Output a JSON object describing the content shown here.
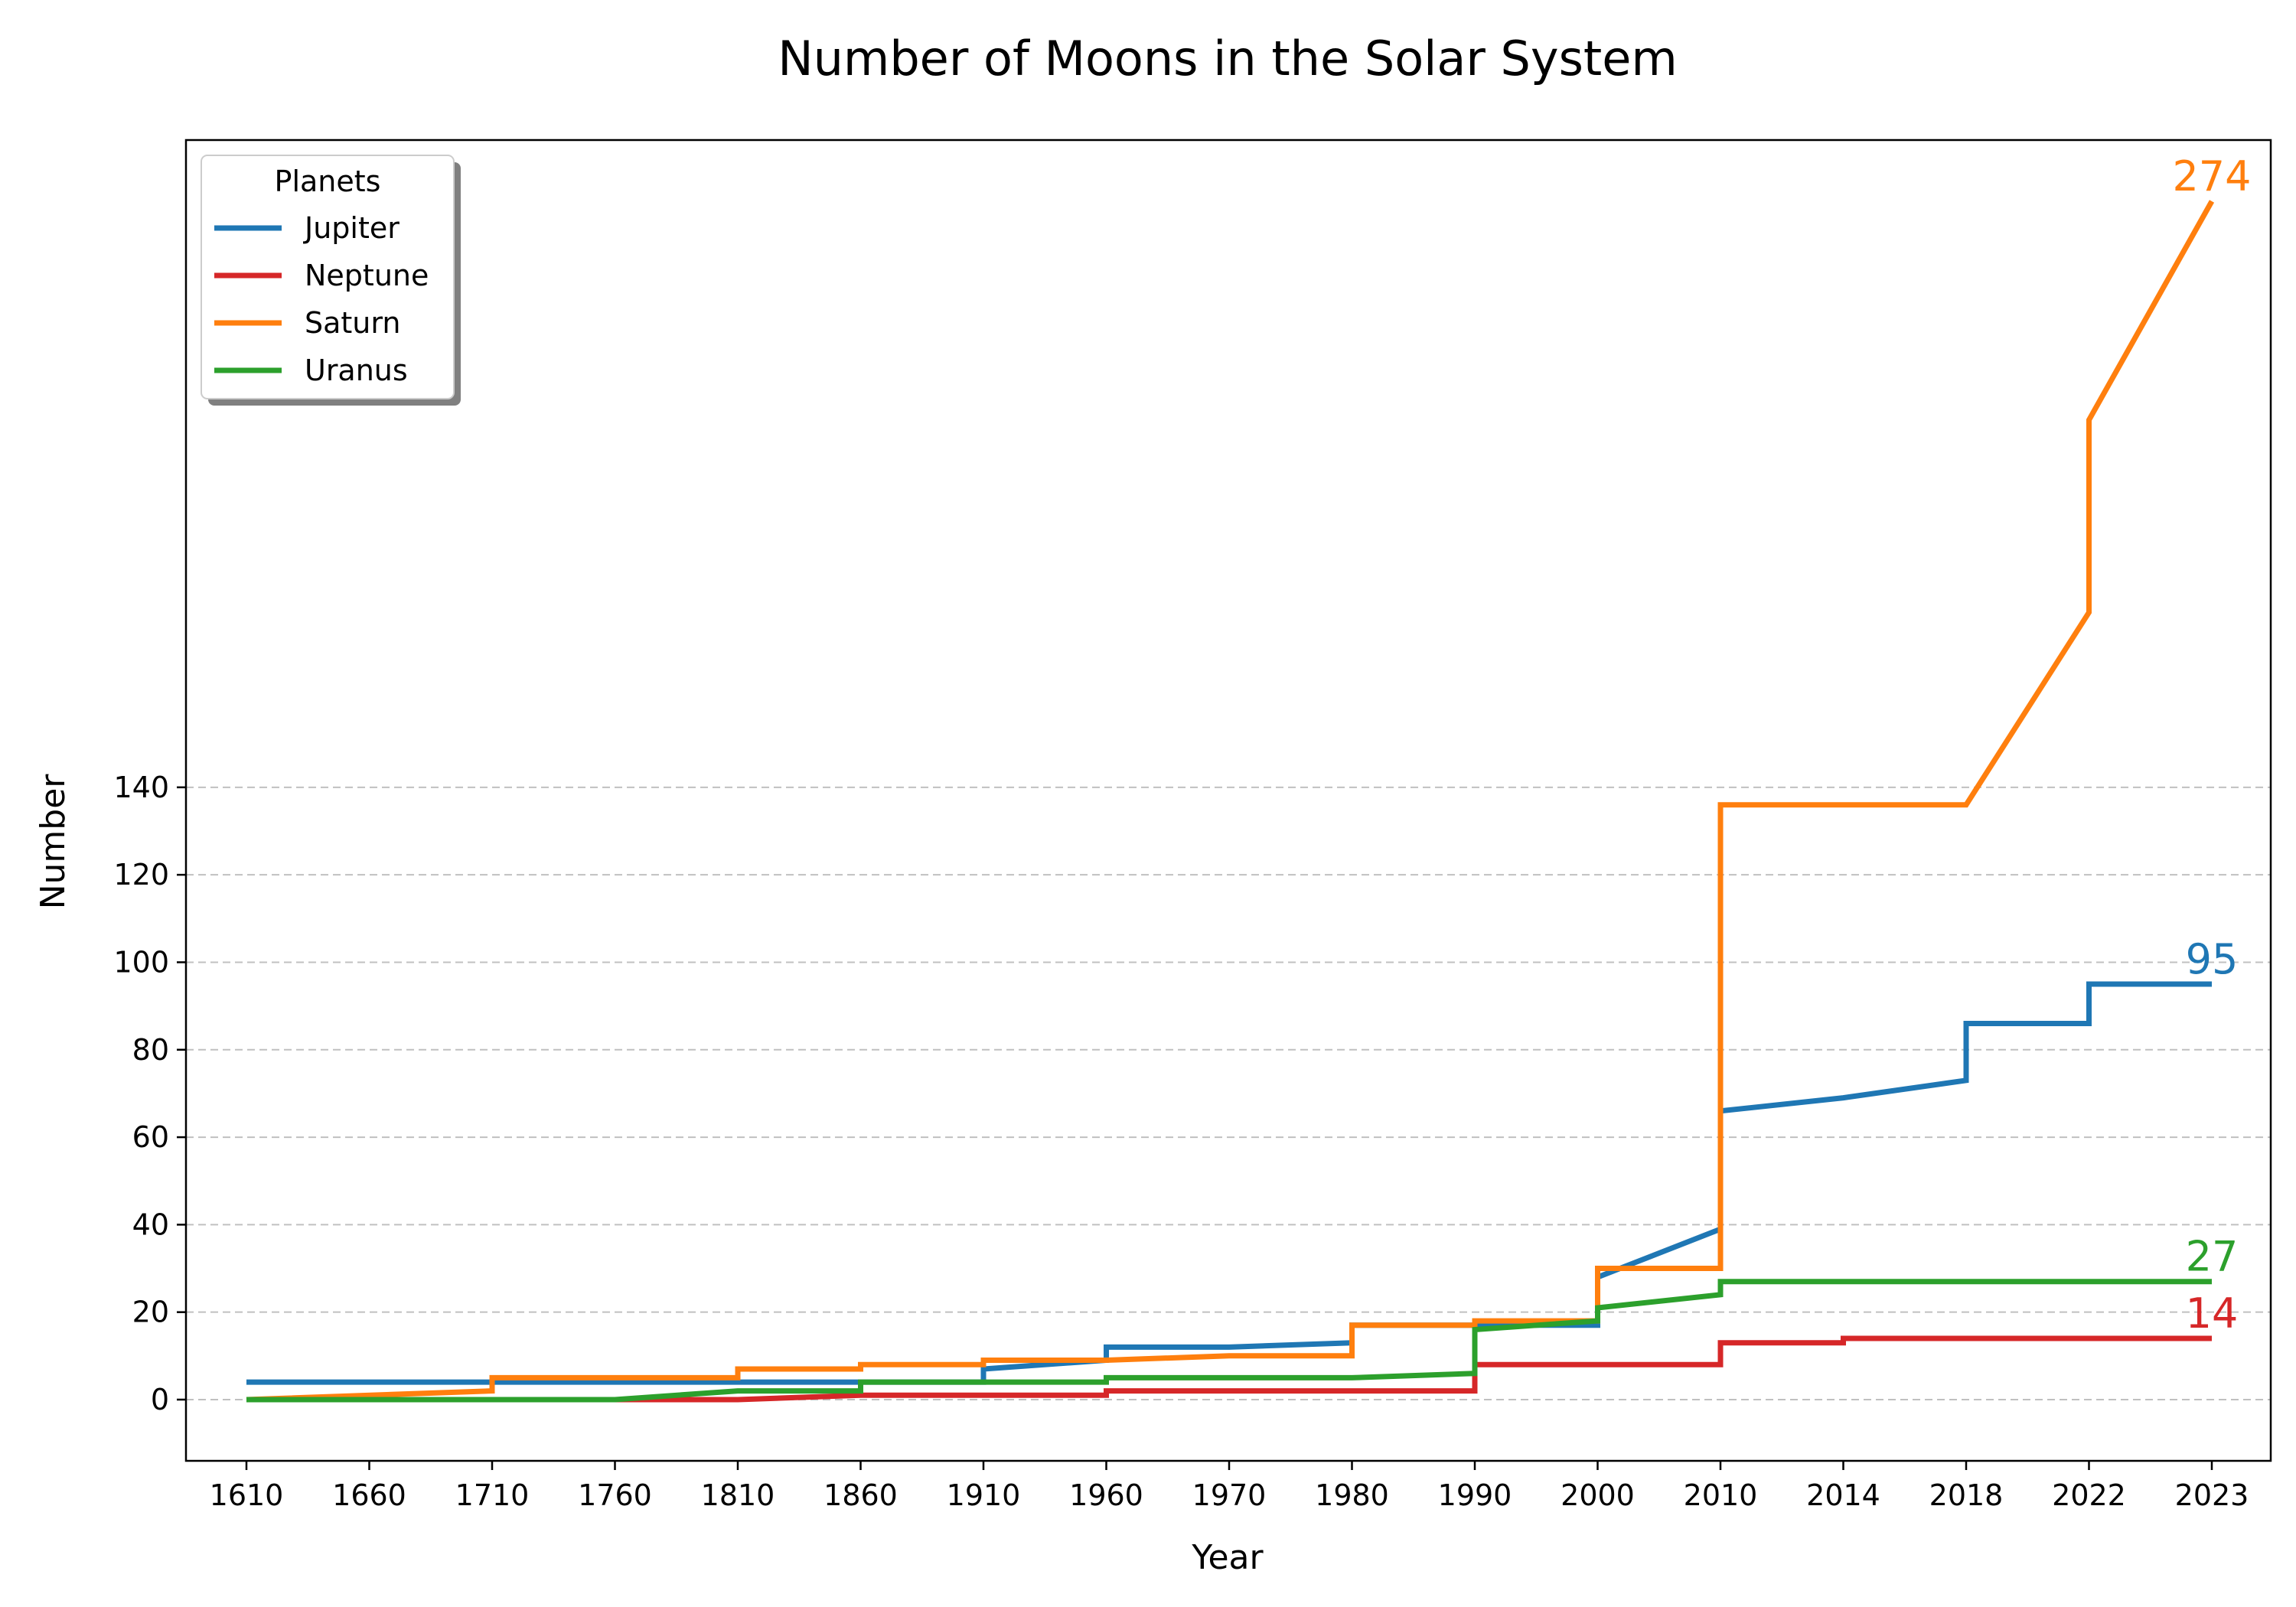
{
  "chart_data": {
    "type": "line",
    "title": "Number of Moons in the Solar System",
    "xlabel": "Year",
    "ylabel": "Number",
    "categories": [
      "1610",
      "1660",
      "1710",
      "1760",
      "1810",
      "1860",
      "1910",
      "1960",
      "1970",
      "1980",
      "1990",
      "2000",
      "2010",
      "2014",
      "2018",
      "2022",
      "2023"
    ],
    "y_ticks": [
      0,
      20,
      40,
      60,
      80,
      100,
      120,
      140
    ],
    "ylim": [
      -14,
      288
    ],
    "grid": "y-dashed",
    "legend": {
      "title": "Planets",
      "placement": "top-left"
    },
    "series": [
      {
        "name": "Jupiter",
        "color": "#1f77b4",
        "end_label": "95",
        "points": [
          [
            0,
            4
          ],
          [
            2,
            4
          ],
          [
            2,
            4
          ],
          [
            6,
            4
          ],
          [
            6,
            7
          ],
          [
            7,
            9
          ],
          [
            7,
            12
          ],
          [
            8,
            12
          ],
          [
            9,
            13
          ],
          [
            9,
            17
          ],
          [
            11,
            17
          ],
          [
            11,
            28
          ],
          [
            12,
            39
          ],
          [
            12,
            66
          ],
          [
            13,
            69
          ],
          [
            14,
            73
          ],
          [
            14,
            86
          ],
          [
            15,
            86
          ],
          [
            15,
            95
          ],
          [
            16,
            95
          ]
        ]
      },
      {
        "name": "Neptune",
        "color": "#d62728",
        "end_label": "14",
        "points": [
          [
            0,
            0
          ],
          [
            4,
            0
          ],
          [
            5,
            1
          ],
          [
            7,
            1
          ],
          [
            7,
            2
          ],
          [
            10,
            2
          ],
          [
            10,
            8
          ],
          [
            12,
            8
          ],
          [
            12,
            13
          ],
          [
            13,
            13
          ],
          [
            13,
            14
          ],
          [
            16,
            14
          ]
        ]
      },
      {
        "name": "Saturn",
        "color": "#ff7f0e",
        "end_label": "274",
        "points": [
          [
            0,
            0
          ],
          [
            2,
            2
          ],
          [
            2,
            5
          ],
          [
            4,
            5
          ],
          [
            4,
            7
          ],
          [
            5,
            7
          ],
          [
            5,
            8
          ],
          [
            6,
            8
          ],
          [
            6,
            9
          ],
          [
            7,
            9
          ],
          [
            8,
            10
          ],
          [
            9,
            10
          ],
          [
            9,
            17
          ],
          [
            10,
            17
          ],
          [
            10,
            18
          ],
          [
            11,
            18
          ],
          [
            11,
            30
          ],
          [
            12,
            30
          ],
          [
            12,
            136
          ],
          [
            14,
            136
          ],
          [
            15,
            180
          ],
          [
            15,
            224
          ],
          [
            16,
            274
          ]
        ]
      },
      {
        "name": "Uranus",
        "color": "#2ca02c",
        "end_label": "27",
        "points": [
          [
            0,
            0
          ],
          [
            3,
            0
          ],
          [
            4,
            2
          ],
          [
            5,
            2
          ],
          [
            5,
            4
          ],
          [
            7,
            4
          ],
          [
            7,
            5
          ],
          [
            9,
            5
          ],
          [
            10,
            6
          ],
          [
            10,
            16
          ],
          [
            11,
            18
          ],
          [
            11,
            21
          ],
          [
            12,
            24
          ],
          [
            12,
            27
          ],
          [
            16,
            27
          ]
        ]
      }
    ]
  }
}
